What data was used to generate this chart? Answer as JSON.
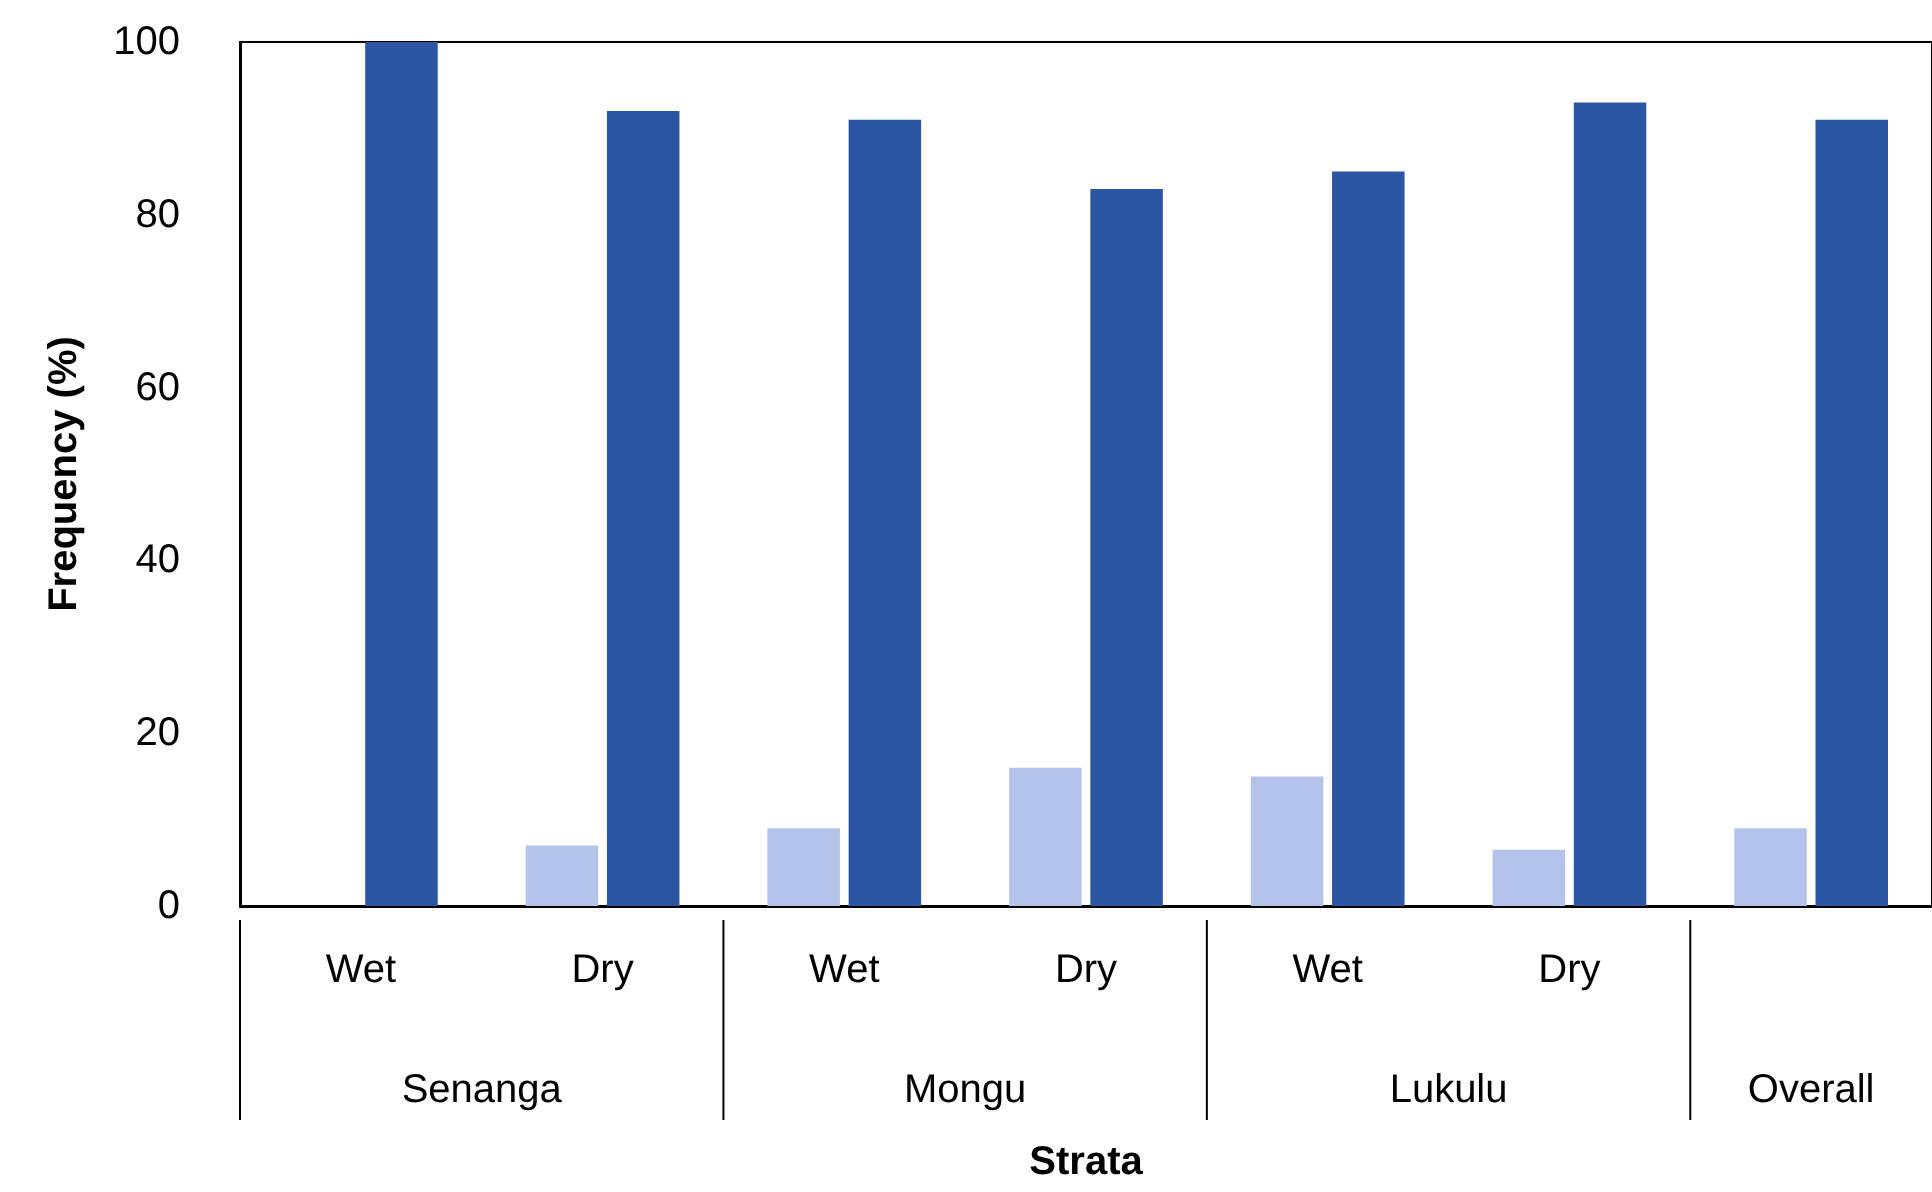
{
  "chart_data": {
    "type": "bar",
    "xlabel": "Strata",
    "ylabel": "Frequency (%)",
    "categories": [
      "Wet",
      "Dry",
      "Wet",
      "Dry",
      "Wet",
      "Dry",
      null
    ],
    "annotations": [
      "Senanga",
      "Mongu",
      "Lukulu",
      "Overall"
    ],
    "series": [
      {
        "color": "#b4c3ea",
        "values": [
          0,
          7,
          9,
          16,
          15,
          6.5,
          9
        ]
      },
      {
        "color": "#2c55a4",
        "values": [
          100,
          92,
          91,
          83,
          85,
          93,
          91
        ]
      }
    ],
    "ylim": [
      0,
      100
    ],
    "yticks": [
      0,
      20,
      40,
      60,
      80,
      100
    ],
    "grid": false
  }
}
